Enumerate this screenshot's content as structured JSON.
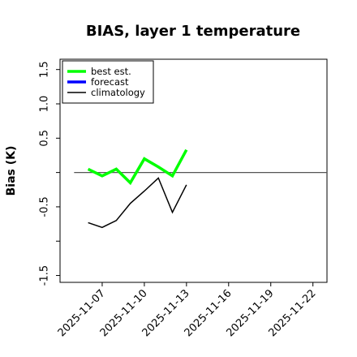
{
  "chart_data": {
    "type": "line",
    "title": "BIAS, layer 1 temperature",
    "ylabel": "Bias (K)",
    "xlabel": "",
    "ylim": [
      -1.6,
      1.65
    ],
    "xlim": [
      "2025-11-04",
      "2025-11-23"
    ],
    "yticks": [
      -1.5,
      -1.0,
      -0.5,
      0.0,
      0.5,
      1.0,
      1.5
    ],
    "ytick_labels": [
      "-1.5",
      "",
      "-0.5",
      "",
      "0.5",
      "1.0",
      "1.5"
    ],
    "xticks": [
      "2025-11-07",
      "2025-11-10",
      "2025-11-13",
      "2025-11-16",
      "2025-11-19",
      "2025-11-22"
    ],
    "xtick_labels": [
      "2025-11-07",
      "2025-11-10",
      "2025-11-13",
      "2025-11-16",
      "2025-11-19",
      "2025-11-22"
    ],
    "highlight_xtick": "2025-11-13",
    "highlight_color": "#228b22",
    "grid": false,
    "legend_position": "top-left",
    "reference_line": {
      "y": 0.0,
      "x_start": "2025-11-05",
      "x_end": "2025-11-23",
      "color": "#555555"
    },
    "series": [
      {
        "name": "best est.",
        "color": "#00ff00",
        "x": [
          "2025-11-06",
          "2025-11-07",
          "2025-11-08",
          "2025-11-09",
          "2025-11-10",
          "2025-11-11",
          "2025-11-12",
          "2025-11-13"
        ],
        "values": [
          0.05,
          -0.05,
          0.05,
          -0.15,
          0.2,
          0.08,
          -0.05,
          0.33
        ]
      },
      {
        "name": "forecast",
        "color": "#0000ff",
        "x": [],
        "values": []
      },
      {
        "name": "climatology",
        "color": "#000000",
        "x": [
          "2025-11-06",
          "2025-11-07",
          "2025-11-08",
          "2025-11-09",
          "2025-11-10",
          "2025-11-11",
          "2025-11-12",
          "2025-11-13"
        ],
        "values": [
          -0.73,
          -0.8,
          -0.7,
          -0.45,
          -0.27,
          -0.08,
          -0.58,
          -0.18
        ]
      }
    ]
  }
}
